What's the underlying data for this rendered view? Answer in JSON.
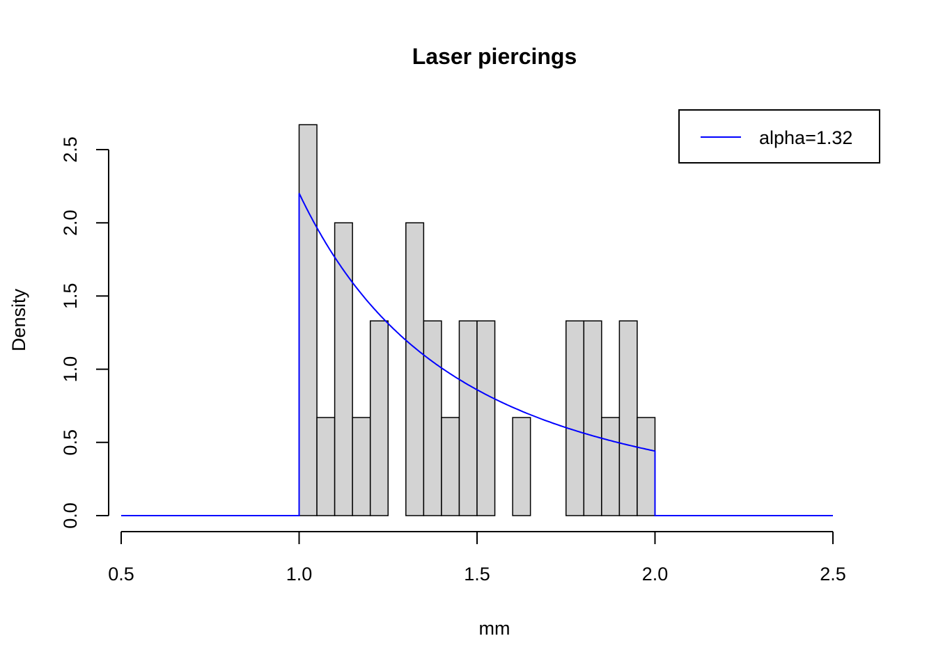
{
  "chart_data": {
    "type": "bar",
    "title": "Laser piercings",
    "xlabel": "mm",
    "ylabel": "Density",
    "xlim": [
      0.5,
      2.5
    ],
    "ylim": [
      0,
      2.5
    ],
    "x_ticks": [
      "0.5",
      "1.0",
      "1.5",
      "2.0",
      "2.5"
    ],
    "y_ticks": [
      "0.0",
      "0.5",
      "1.0",
      "1.5",
      "2.0",
      "2.5"
    ],
    "grid": false,
    "legend_position": "top-right",
    "histogram": {
      "bin_width": 0.05,
      "bin_start": 1.0,
      "bar_color": "#d3d3d3",
      "densities": [
        2.67,
        0.67,
        2.0,
        0.67,
        1.33,
        0,
        2.0,
        1.33,
        0.67,
        1.33,
        1.33,
        0,
        0.67,
        0,
        0,
        1.33,
        1.33,
        0.67,
        1.33,
        0.67
      ]
    },
    "series": [
      {
        "name": "alpha=1.32",
        "color": "#0000ff",
        "support": [
          1.0,
          2.0
        ],
        "alpha": 1.32
      }
    ]
  }
}
